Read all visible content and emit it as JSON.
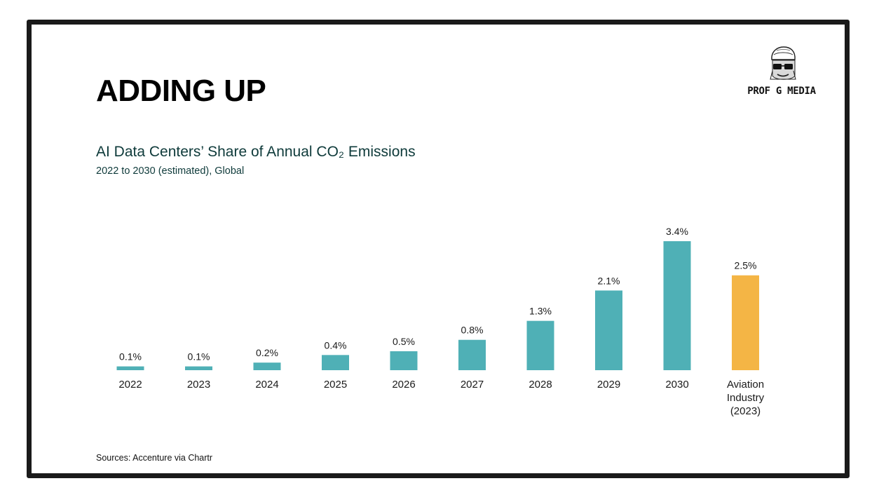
{
  "headline": "ADDING UP",
  "logo": {
    "text": "PROF G MEDIA",
    "icon": "prof-g-portrait-icon"
  },
  "footer": {
    "sources": "Sources: Accenture via Chartr"
  },
  "colors": {
    "bar": "#4fb0b6",
    "highlight": "#f4b545",
    "title": "#0e3a3a",
    "text": "#1a1a1a"
  },
  "chart_data": {
    "type": "bar",
    "title": "AI Data Centers’ Share of Annual CO₂ Emissions",
    "subtitle": "2022 to 2030 (estimated), Global",
    "categories": [
      "2022",
      "2023",
      "2024",
      "2025",
      "2026",
      "2027",
      "2028",
      "2029",
      "2030",
      "Aviation Industry (2023)"
    ],
    "values": [
      0.1,
      0.1,
      0.2,
      0.4,
      0.5,
      0.8,
      1.3,
      2.1,
      3.4,
      2.5
    ],
    "value_labels": [
      "0.1%",
      "0.1%",
      "0.2%",
      "0.4%",
      "0.5%",
      "0.8%",
      "1.3%",
      "2.1%",
      "3.4%",
      "2.5%"
    ],
    "highlight_index": 9,
    "unit": "%",
    "ylim": [
      0,
      3.4
    ],
    "grid": false,
    "y_axis_visible": false
  }
}
